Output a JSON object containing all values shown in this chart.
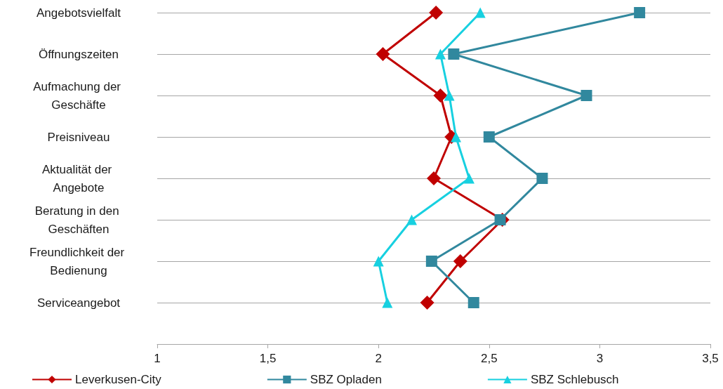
{
  "chart_data": {
    "type": "line",
    "orientation": "horizontal",
    "categories": [
      "Angebotsvielfalt",
      "Öffnungszeiten",
      "Aufmachung der Geschäfte",
      "Preisniveau",
      "Aktualität der Angebote",
      "Beratung in den Geschäften",
      "Freundlichkeit der Bedienung",
      "Serviceangebot"
    ],
    "series": [
      {
        "name": "Leverkusen-City",
        "color": "#c00000",
        "marker": "diamond",
        "values": [
          2.26,
          2.02,
          2.28,
          2.33,
          2.25,
          2.56,
          2.37,
          2.22
        ]
      },
      {
        "name": "SBZ Opladen",
        "color": "#31889e",
        "marker": "square",
        "values": [
          3.18,
          2.34,
          2.94,
          2.5,
          2.74,
          2.55,
          2.24,
          2.43
        ]
      },
      {
        "name": "SBZ Schlebusch",
        "color": "#17d0e0",
        "marker": "triangle",
        "values": [
          2.46,
          2.28,
          2.32,
          2.35,
          2.41,
          2.15,
          2.0,
          2.04
        ]
      }
    ],
    "xlim": [
      1,
      3.5
    ],
    "xticks": [
      1,
      {
        "value": 1.5,
        "label": "1,5"
      },
      2,
      {
        "value": 2.5,
        "label": "2,5"
      },
      3,
      {
        "value": 3.5,
        "label": "3,5"
      }
    ],
    "grid": "y",
    "legend": "bottom",
    "line_style": "solid"
  }
}
